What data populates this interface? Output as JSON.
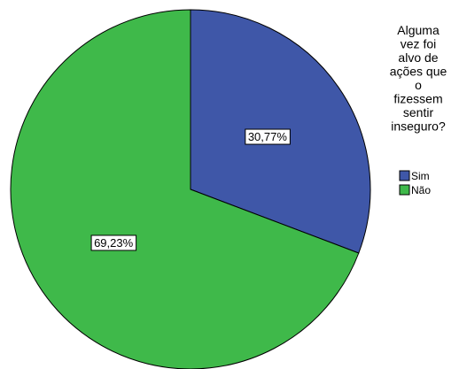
{
  "chart_data": {
    "type": "pie",
    "title": "",
    "legend": {
      "title": "Alguma vez foi alvo de ações que o fizessem sentir inseguro?",
      "title_lines": [
        "Alguma",
        "vez foi",
        "alvo de",
        "ações que",
        "o",
        "fizessem",
        "sentir",
        "inseguro?"
      ],
      "placement": "right"
    },
    "slices": [
      {
        "label": "Sim",
        "value": 30.77,
        "value_label": "30,77%",
        "color": "#3f57a8"
      },
      {
        "label": "Não",
        "value": 69.23,
        "value_label": "69,23%",
        "color": "#3fb94a"
      }
    ],
    "start_angle": "12 o'clock",
    "direction": "clockwise"
  }
}
